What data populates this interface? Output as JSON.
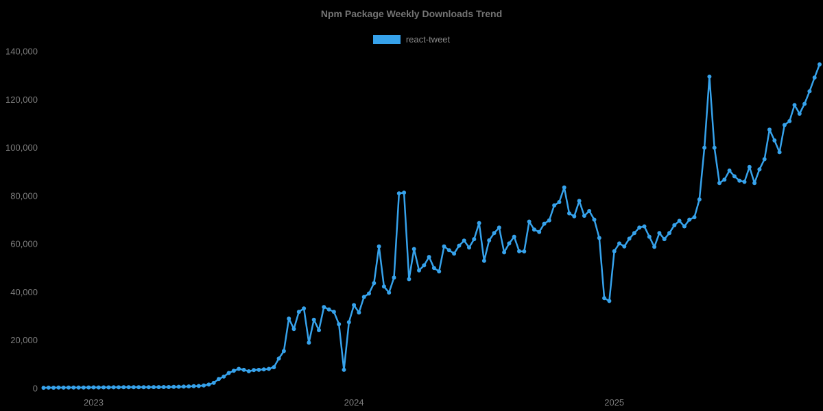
{
  "chart": {
    "title": "Npm Package Weekly Downloads Trend",
    "background_color": "#000000",
    "text_color": "#7d7d7d",
    "accent_color": "#36a2eb"
  },
  "legend": {
    "position": "top",
    "items": [
      {
        "label": "react-tweet",
        "color": "#36a2eb"
      }
    ]
  },
  "chart_data": {
    "type": "line",
    "title": "Npm Package Weekly Downloads Trend",
    "xlabel": "",
    "ylabel": "",
    "ylim": [
      0,
      140000
    ],
    "grid": false,
    "legend_position": "top",
    "x_unit": "week",
    "x_range_note": "weekly points from late Oct 2022 to Oct 2025",
    "y_ticks": [
      {
        "label": "0",
        "value": 0
      },
      {
        "label": "20,000",
        "value": 20000
      },
      {
        "label": "40,000",
        "value": 40000
      },
      {
        "label": "60,000",
        "value": 60000
      },
      {
        "label": "80,000",
        "value": 80000
      },
      {
        "label": "100,000",
        "value": 100000
      },
      {
        "label": "120,000",
        "value": 120000
      },
      {
        "label": "140,000",
        "value": 140000
      }
    ],
    "x_ticks": [
      {
        "label": "2023",
        "week": 10
      },
      {
        "label": "2024",
        "week": 62
      },
      {
        "label": "2025",
        "week": 114
      }
    ],
    "series": [
      {
        "name": "react-tweet",
        "color": "#36a2eb",
        "values": [
          250,
          300,
          280,
          330,
          310,
          360,
          340,
          380,
          360,
          400,
          420,
          400,
          440,
          430,
          460,
          450,
          480,
          470,
          500,
          490,
          520,
          510,
          550,
          540,
          570,
          560,
          620,
          680,
          750,
          830,
          920,
          1000,
          1200,
          1600,
          2300,
          3900,
          4900,
          6400,
          7300,
          8100,
          7700,
          7100,
          7600,
          7700,
          7900,
          8100,
          8800,
          12400,
          15500,
          29000,
          24700,
          31800,
          33200,
          19000,
          28500,
          24200,
          33800,
          32800,
          31800,
          26700,
          7700,
          27500,
          34600,
          31500,
          38000,
          39400,
          43700,
          59000,
          42300,
          39800,
          46000,
          81000,
          81300,
          45400,
          57900,
          49000,
          51100,
          54600,
          50000,
          48600,
          59000,
          57400,
          56000,
          59300,
          61400,
          58500,
          62000,
          68700,
          53000,
          61500,
          64500,
          66800,
          56500,
          60200,
          63000,
          57000,
          56900,
          69300,
          66000,
          65000,
          68400,
          69800,
          76000,
          77400,
          83500,
          72700,
          71500,
          77900,
          71700,
          73700,
          70100,
          62500,
          37500,
          36300,
          57000,
          60200,
          59000,
          62200,
          64500,
          66800,
          67300,
          63000,
          58800,
          64500,
          62000,
          64500,
          67800,
          69600,
          67300,
          70100,
          71100,
          78500,
          100000,
          129500,
          100000,
          85300,
          86700,
          90500,
          88100,
          86300,
          85800,
          92000,
          85300,
          91000,
          95200,
          107500,
          103000,
          98100,
          109400,
          111000,
          117700,
          114100,
          118200,
          123400,
          129100,
          134600
        ]
      }
    ]
  }
}
